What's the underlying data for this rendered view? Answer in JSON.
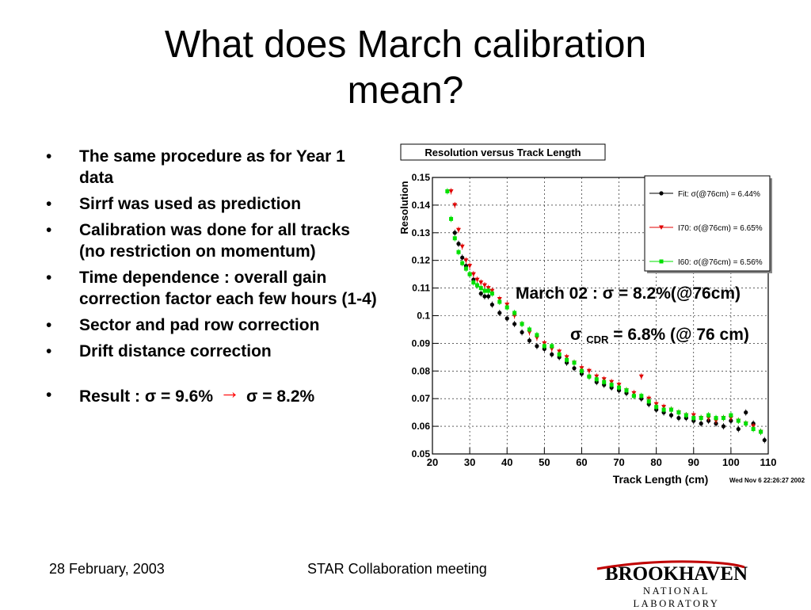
{
  "slide": {
    "title_line1": "What does March calibration",
    "title_line2": "mean?",
    "bullets": [
      "The same procedure as for Year 1 data",
      "Sirrf was used as prediction",
      "Calibration was done for all tracks (no restriction  on momentum)",
      "Time dependence : overall gain correction factor each few hours (1-4)",
      "Sector and pad row correction",
      "Drift distance correction"
    ],
    "result": {
      "prefix": "Result : σ = 9.6%",
      "arrow": "→",
      "suffix": "σ = 8.2%"
    },
    "annotation_march": "March 02 : σ = 8.2%(@76cm)",
    "annotation_cdr_sigma": "σ",
    "annotation_cdr_sub": "CDR",
    "annotation_cdr_rest": " =  6.8% (@ 76 cm)",
    "footer_date": "28 February, 2003",
    "footer_meeting": "STAR Collaboration  meeting",
    "logo_top": "BROOKHAVEN",
    "logo_bottom": "NATIONAL LABORATORY",
    "colors": {
      "red_arrow": "#ff0000",
      "swoosh": "#c00000"
    }
  },
  "chart_data": {
    "type": "scatter",
    "title": "Resolution versus Track Length",
    "xlabel": "Track Length (cm)",
    "ylabel": "Resolution",
    "timestamp": "Wed Nov  6 22:26:27 2002",
    "xlim": [
      20,
      110
    ],
    "ylim": [
      0.05,
      0.15
    ],
    "xticks": [
      "20",
      "30",
      "40",
      "50",
      "60",
      "70",
      "80",
      "90",
      "100",
      "110"
    ],
    "yticks": [
      "0.05",
      "0.06",
      "0.07",
      "0.08",
      "0.09",
      "0.1",
      "0.11",
      "0.12",
      "0.13",
      "0.14",
      "0.15"
    ],
    "grid": true,
    "legend_position": "top-right",
    "series": [
      {
        "name": "Fit:  σ(@76cm) =  6.44%",
        "color": "#000000",
        "marker": "circle",
        "x": [
          26,
          27,
          28,
          29,
          30,
          31,
          32,
          33,
          34,
          35,
          36,
          38,
          40,
          42,
          44,
          46,
          48,
          50,
          52,
          54,
          56,
          58,
          60,
          62,
          64,
          66,
          68,
          70,
          72,
          74,
          76,
          78,
          80,
          82,
          84,
          86,
          88,
          90,
          92,
          94,
          96,
          98,
          100,
          102,
          104,
          106,
          108,
          109
        ],
        "y": [
          0.13,
          0.126,
          0.121,
          0.118,
          0.115,
          0.113,
          0.111,
          0.108,
          0.107,
          0.107,
          0.104,
          0.101,
          0.099,
          0.097,
          0.094,
          0.091,
          0.089,
          0.088,
          0.086,
          0.085,
          0.083,
          0.081,
          0.079,
          0.078,
          0.076,
          0.075,
          0.074,
          0.073,
          0.072,
          0.071,
          0.07,
          0.068,
          0.066,
          0.065,
          0.064,
          0.063,
          0.063,
          0.062,
          0.061,
          0.062,
          0.061,
          0.06,
          0.062,
          0.059,
          0.065,
          0.061,
          0.058,
          0.055
        ]
      },
      {
        "name": "I70:  σ(@76cm) =  6.65%",
        "color": "#e00000",
        "marker": "triangle",
        "x": [
          25,
          26,
          27,
          28,
          29,
          30,
          31,
          32,
          33,
          34,
          35,
          36,
          38,
          40,
          42,
          44,
          46,
          48,
          50,
          52,
          54,
          56,
          58,
          60,
          62,
          64,
          66,
          68,
          70,
          72,
          74,
          76,
          78,
          80,
          82,
          84,
          86,
          88,
          90,
          92,
          94,
          96,
          98,
          100,
          102,
          104,
          106,
          108
        ],
        "y": [
          0.145,
          0.14,
          0.131,
          0.125,
          0.12,
          0.118,
          0.115,
          0.113,
          0.112,
          0.111,
          0.11,
          0.109,
          0.106,
          0.104,
          0.1,
          0.097,
          0.094,
          0.092,
          0.09,
          0.088,
          0.087,
          0.085,
          0.083,
          0.081,
          0.08,
          0.078,
          0.077,
          0.076,
          0.075,
          0.073,
          0.072,
          0.078,
          0.07,
          0.068,
          0.067,
          0.066,
          0.065,
          0.064,
          0.064,
          0.063,
          0.063,
          0.062,
          0.063,
          0.063,
          0.062,
          0.061,
          0.06,
          0.058
        ]
      },
      {
        "name": "I60:  σ(@76cm) =  6.56%",
        "color": "#00e000",
        "marker": "square",
        "x": [
          24,
          25,
          26,
          27,
          28,
          29,
          30,
          31,
          32,
          33,
          34,
          35,
          36,
          38,
          40,
          42,
          44,
          46,
          48,
          50,
          52,
          54,
          56,
          58,
          60,
          62,
          64,
          66,
          68,
          70,
          72,
          74,
          76,
          78,
          80,
          82,
          84,
          86,
          88,
          90,
          92,
          94,
          96,
          98,
          100,
          102,
          104,
          106,
          108
        ],
        "y": [
          0.145,
          0.135,
          0.128,
          0.123,
          0.119,
          0.117,
          0.115,
          0.112,
          0.111,
          0.11,
          0.109,
          0.109,
          0.108,
          0.105,
          0.103,
          0.101,
          0.097,
          0.095,
          0.093,
          0.089,
          0.089,
          0.086,
          0.084,
          0.083,
          0.08,
          0.078,
          0.077,
          0.076,
          0.075,
          0.074,
          0.073,
          0.071,
          0.071,
          0.069,
          0.067,
          0.066,
          0.066,
          0.065,
          0.064,
          0.063,
          0.063,
          0.064,
          0.063,
          0.063,
          0.064,
          0.062,
          0.061,
          0.059,
          0.058
        ]
      }
    ]
  }
}
